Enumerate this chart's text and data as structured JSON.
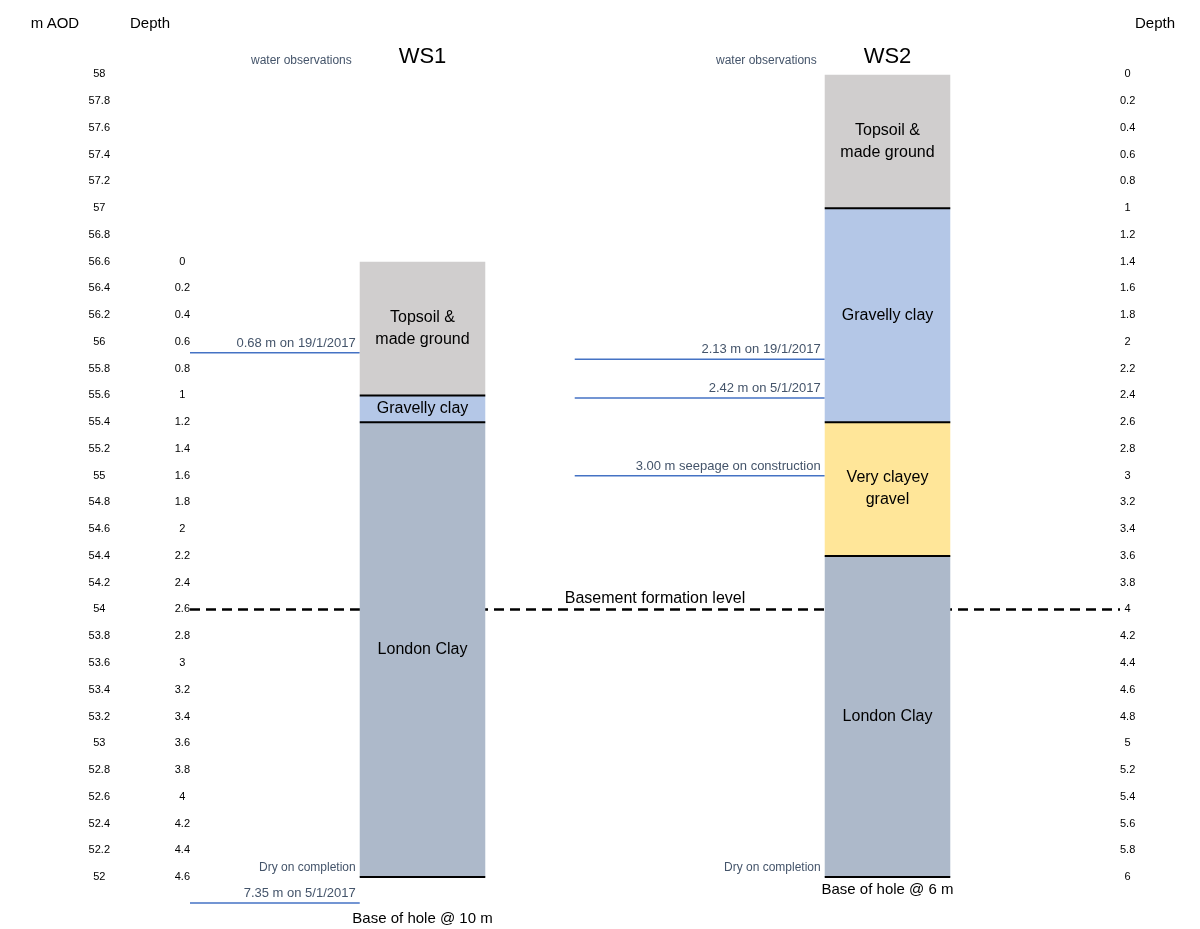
{
  "chart_data": {
    "type": "bar",
    "categories": [
      "WS1",
      "WS2"
    ],
    "series": [
      {
        "name": "Topsoil & made ground",
        "color": "#d0cece",
        "base": [
          55.6,
          57
        ],
        "values": [
          1.0,
          1.0
        ]
      },
      {
        "name": "Gravelly clay",
        "color": "#b4c7e7",
        "base": [
          55.4,
          55.4
        ],
        "values": [
          0.2,
          1.6
        ]
      },
      {
        "name": "Very clayey gravel",
        "color": "#ffe699",
        "base": [
          null,
          54.4
        ],
        "values": [
          null,
          1.0
        ]
      },
      {
        "name": "London Clay",
        "color": "#adb9ca",
        "base": [
          52,
          52
        ],
        "values": [
          3.4,
          2.4
        ]
      }
    ],
    "ylabel": "m AOD",
    "y2label": "Depth",
    "y3label": "Depth",
    "ylim": [
      52,
      58
    ],
    "yticks": [
      58,
      57.8,
      57.6,
      57.4,
      57.2,
      57,
      56.8,
      56.6,
      56.4,
      56.2,
      56,
      55.8,
      55.6,
      55.4,
      55.2,
      55,
      54.8,
      54.6,
      54.4,
      54.2,
      54,
      53.8,
      53.6,
      53.4,
      53.2,
      53,
      52.8,
      52.6,
      52.4,
      52.2,
      52
    ],
    "y2lim": [
      4.6,
      -1.4
    ],
    "y2ticks": [
      0,
      0.2,
      0.4,
      0.6,
      0.8,
      1,
      1.2,
      1.4,
      1.6,
      1.8,
      2,
      2.2,
      2.4,
      2.6,
      2.8,
      3,
      3.2,
      3.4,
      3.6,
      3.8,
      4,
      4.2,
      4.4,
      4.6
    ],
    "y3lim": [
      6,
      0
    ],
    "y3ticks": [
      0,
      0.2,
      0.4,
      0.6,
      0.8,
      1,
      1.2,
      1.4,
      1.6,
      1.8,
      2,
      2.2,
      2.4,
      2.6,
      2.8,
      3,
      3.2,
      3.4,
      3.6,
      3.8,
      4,
      4.2,
      4.4,
      4.6,
      4.8,
      5,
      5.2,
      5.4,
      5.6,
      5.8,
      6
    ],
    "ref_lines": [
      {
        "axis": "y",
        "value": 54,
        "label": "Basement formation level",
        "color": "#000000",
        "line_style": "dashed"
      },
      {
        "axis": "y2",
        "value": 0.68,
        "label": "0.68 m on 19/1/2017",
        "color": "#4472c4"
      },
      {
        "axis": "y3",
        "value": 2.13,
        "label": "2.13 m on 19/1/2017",
        "color": "#4472c4"
      },
      {
        "axis": "y3",
        "value": 2.42,
        "label": "2.42 m on 5/1/2017",
        "color": "#4472c4"
      },
      {
        "axis": "y3",
        "value": 3.0,
        "label": "3.00 m seepage on construction",
        "color": "#4472c4"
      }
    ],
    "annotations": [
      "water observations",
      "water observations",
      "Dry on completion",
      "Dry on completion",
      "7.35 m on 5/1/2017",
      "Base of hole @ 10 m",
      "Base of hole @ 6 m"
    ],
    "grid": false,
    "legend": false
  }
}
